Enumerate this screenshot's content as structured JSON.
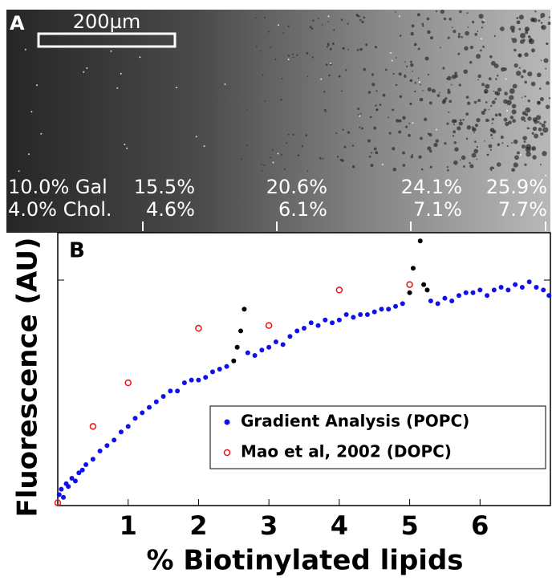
{
  "image_panel": {
    "label": "A",
    "scale_bar": "200µm",
    "top_row": [
      "10.0% Gal",
      "15.5%",
      "20.6%",
      "24.1%",
      "25.9%"
    ],
    "bottom_row": [
      "4.0% Chol.",
      "4.6%",
      "6.1%",
      "7.1%",
      "7.7%"
    ]
  },
  "chart_data": {
    "type": "scatter",
    "panel_label": "B",
    "x_label": "% Biotinylated lipids",
    "y_label": "Fluorescence (AU)",
    "xlim": [
      0,
      7
    ],
    "xticks": [
      1,
      2,
      3,
      4,
      5,
      6
    ],
    "ylim": [
      0,
      1
    ],
    "legend": "lower right",
    "series": [
      {
        "name": "Gradient Analysis (POPC)",
        "color": "#1010ee",
        "marker": "filled",
        "x": [
          0.02,
          0.05,
          0.08,
          0.12,
          0.15,
          0.2,
          0.25,
          0.3,
          0.35,
          0.4,
          0.5,
          0.6,
          0.7,
          0.8,
          0.9,
          1.0,
          1.1,
          1.2,
          1.3,
          1.4,
          1.5,
          1.6,
          1.7,
          1.8,
          1.9,
          2.0,
          2.1,
          2.2,
          2.3,
          2.4,
          2.7,
          2.8,
          2.9,
          3.0,
          3.1,
          3.2,
          3.3,
          3.4,
          3.5,
          3.6,
          3.7,
          3.8,
          3.9,
          4.0,
          4.1,
          4.2,
          4.3,
          4.4,
          4.5,
          4.6,
          4.7,
          4.8,
          4.9,
          5.3,
          5.4,
          5.5,
          5.6,
          5.7,
          5.8,
          5.9,
          6.0,
          6.1,
          6.2,
          6.3,
          6.4,
          6.5,
          6.6,
          6.7,
          6.8,
          6.9,
          6.98
        ],
        "values": [
          0.04,
          0.06,
          0.03,
          0.08,
          0.07,
          0.1,
          0.09,
          0.12,
          0.13,
          0.15,
          0.17,
          0.2,
          0.22,
          0.24,
          0.27,
          0.29,
          0.32,
          0.34,
          0.36,
          0.38,
          0.4,
          0.42,
          0.42,
          0.45,
          0.46,
          0.46,
          0.47,
          0.49,
          0.5,
          0.51,
          0.56,
          0.55,
          0.57,
          0.58,
          0.6,
          0.59,
          0.62,
          0.64,
          0.65,
          0.67,
          0.66,
          0.68,
          0.67,
          0.68,
          0.7,
          0.69,
          0.7,
          0.7,
          0.71,
          0.72,
          0.72,
          0.73,
          0.74,
          0.75,
          0.74,
          0.76,
          0.75,
          0.77,
          0.78,
          0.78,
          0.79,
          0.77,
          0.79,
          0.8,
          0.79,
          0.81,
          0.8,
          0.82,
          0.8,
          0.79,
          0.77
        ]
      },
      {
        "color": "#000000",
        "marker": "filled",
        "x": [
          2.5,
          2.55,
          2.6,
          2.65,
          5.0,
          5.05,
          5.15,
          5.2,
          5.25
        ],
        "values": [
          0.53,
          0.58,
          0.64,
          0.72,
          0.78,
          0.87,
          0.97,
          0.81,
          0.79
        ]
      },
      {
        "name": "Mao et al, 2002 (DOPC)",
        "color": "#ee1111",
        "marker": "open",
        "x": [
          0,
          0.5,
          1,
          2,
          3,
          4,
          5
        ],
        "values": [
          0.01,
          0.29,
          0.45,
          0.65,
          0.66,
          0.79,
          0.81
        ]
      }
    ]
  }
}
